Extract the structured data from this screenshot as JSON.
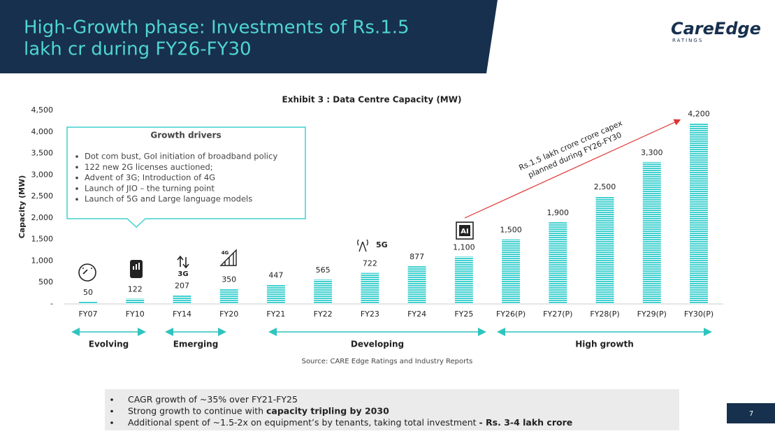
{
  "header": {
    "title_lines": [
      "High-Growth phase: Investments of Rs.1.5",
      "lakh cr during FY26-FY30"
    ],
    "logo": "CareEdge",
    "logo_sub": "RATINGS"
  },
  "chart_data": {
    "type": "bar",
    "title": "Exhibit 3 : Data Centre Capacity (MW)",
    "y_label": "Capacity (MW)",
    "categories": [
      "FY07",
      "FY10",
      "FY14",
      "FY20",
      "FY21",
      "FY22",
      "FY23",
      "FY24",
      "FY25",
      "FY26(P)",
      "FY27(P)",
      "FY28(P)",
      "FY29(P)",
      "FY30(P)"
    ],
    "values": [
      50,
      122,
      207,
      350,
      447,
      565,
      722,
      877,
      1100,
      1500,
      1900,
      2500,
      3300,
      4200
    ],
    "value_labels": [
      "50",
      "122",
      "207",
      "350",
      "447",
      "565",
      "722",
      "877",
      "1,100",
      "1,500",
      "1,900",
      "2,500",
      "3,300",
      "4,200"
    ],
    "color": "#3fd0cf",
    "ylim": [
      0,
      4500
    ],
    "yticks": [
      {
        "value": 0,
        "label": "-"
      },
      500,
      {
        "value": 1000,
        "label": "1,000"
      },
      {
        "value": 1500,
        "label": "1,500"
      },
      {
        "value": 2000,
        "label": "2,000"
      },
      {
        "value": 2500,
        "label": "2,500"
      },
      {
        "value": 3000,
        "label": "3,000"
      },
      {
        "value": 3500,
        "label": "3,500"
      },
      {
        "value": 4000,
        "label": "4,000"
      },
      {
        "value": 4500,
        "label": "4,500"
      }
    ],
    "grid": false,
    "annotation_lines": [
      "Rs.1.5 lakh crore crore capex",
      "planned during FY26-FY30"
    ],
    "growth_drivers": {
      "title": "Growth drivers",
      "items": [
        "Dot com bust, GoI initiation of broadband policy",
        "122 new 2G licenses auctioned;",
        "Advent of 3G; Introduction of 4G",
        "Launch of JIO – the turning point",
        "Launch of 5G and Large language models"
      ]
    },
    "icon_labels": [
      "3G",
      "4G",
      "5G",
      "AI"
    ],
    "phases": [
      "Evolving",
      "Emerging",
      "Developing",
      "High growth"
    ],
    "source": "Source: CARE Edge Ratings and Industry Reports"
  },
  "bullets": [
    [
      "CAGR growth of ~35% over FY21-FY25"
    ],
    [
      "Strong growth to continue with ",
      "capacity tripling by 2030"
    ],
    [
      "Additional spent of ~1.5-2x on equipment’s by tenants, taking total investment ",
      "- Rs. 3-4 lakh crore"
    ]
  ],
  "page_number": "7"
}
